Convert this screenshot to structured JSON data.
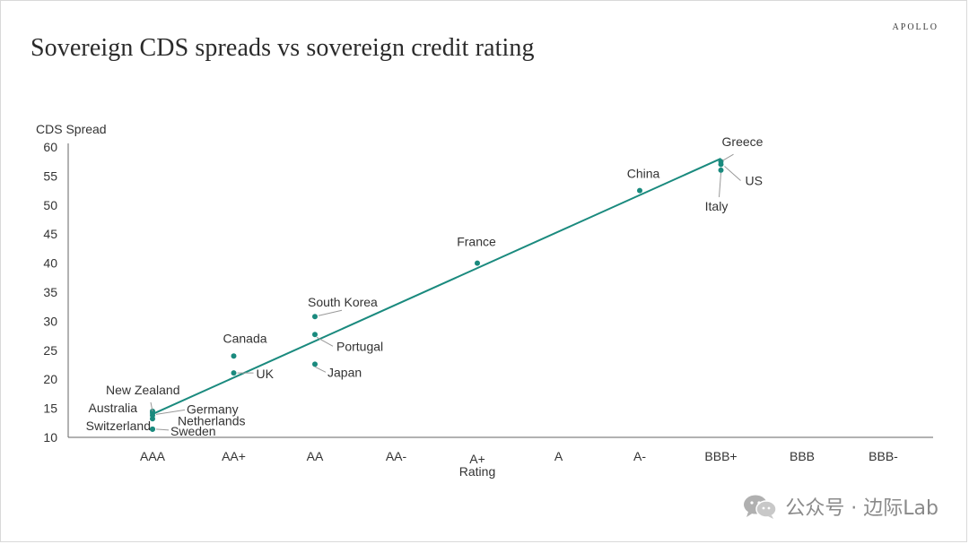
{
  "header": {
    "title": "Sovereign CDS spreads vs sovereign credit rating",
    "brand": "APOLLO"
  },
  "watermark": {
    "text": "公众号 · 边际Lab",
    "icon": "wechat-icon"
  },
  "colors": {
    "accent": "#1a8a7e",
    "axis": "#666666",
    "text": "#333333"
  },
  "chart_data": {
    "type": "scatter",
    "title": "Sovereign CDS spreads vs sovereign credit rating",
    "xlabel": "Rating",
    "ylabel": "CDS Spread",
    "categories": [
      "AAA",
      "AA+",
      "AA",
      "AA-",
      "A+",
      "A",
      "A-",
      "BBB+",
      "BBB",
      "BBB-"
    ],
    "ylim": [
      10,
      60
    ],
    "yticks": [
      10,
      15,
      20,
      25,
      30,
      35,
      40,
      45,
      50,
      55,
      60
    ],
    "grid": false,
    "points": [
      {
        "country": "New Zealand",
        "rating": "AAA",
        "spread": 14.5
      },
      {
        "country": "Australia",
        "rating": "AAA",
        "spread": 14.2
      },
      {
        "country": "Germany",
        "rating": "AAA",
        "spread": 13.8
      },
      {
        "country": "Netherlands",
        "rating": "AAA",
        "spread": 13.2
      },
      {
        "country": "Switzerland",
        "rating": "AAA",
        "spread": 11.4
      },
      {
        "country": "Sweden",
        "rating": "AAA",
        "spread": 11.4
      },
      {
        "country": "Canada",
        "rating": "AA+",
        "spread": 24.0
      },
      {
        "country": "UK",
        "rating": "AA+",
        "spread": 21.1
      },
      {
        "country": "South Korea",
        "rating": "AA",
        "spread": 30.8
      },
      {
        "country": "Portugal",
        "rating": "AA",
        "spread": 27.7
      },
      {
        "country": "Japan",
        "rating": "AA",
        "spread": 22.6
      },
      {
        "country": "France",
        "rating": "A+",
        "spread": 40.0
      },
      {
        "country": "China",
        "rating": "A-",
        "spread": 52.5
      },
      {
        "country": "Greece",
        "rating": "BBB+",
        "spread": 57.5
      },
      {
        "country": "US",
        "rating": "BBB+",
        "spread": 57.0
      },
      {
        "country": "Italy",
        "rating": "BBB+",
        "spread": 56.0
      }
    ],
    "trendline": {
      "from": {
        "rating": "AAA",
        "spread": 14.0
      },
      "to": {
        "rating": "BBB+",
        "spread": 58.0
      }
    }
  }
}
